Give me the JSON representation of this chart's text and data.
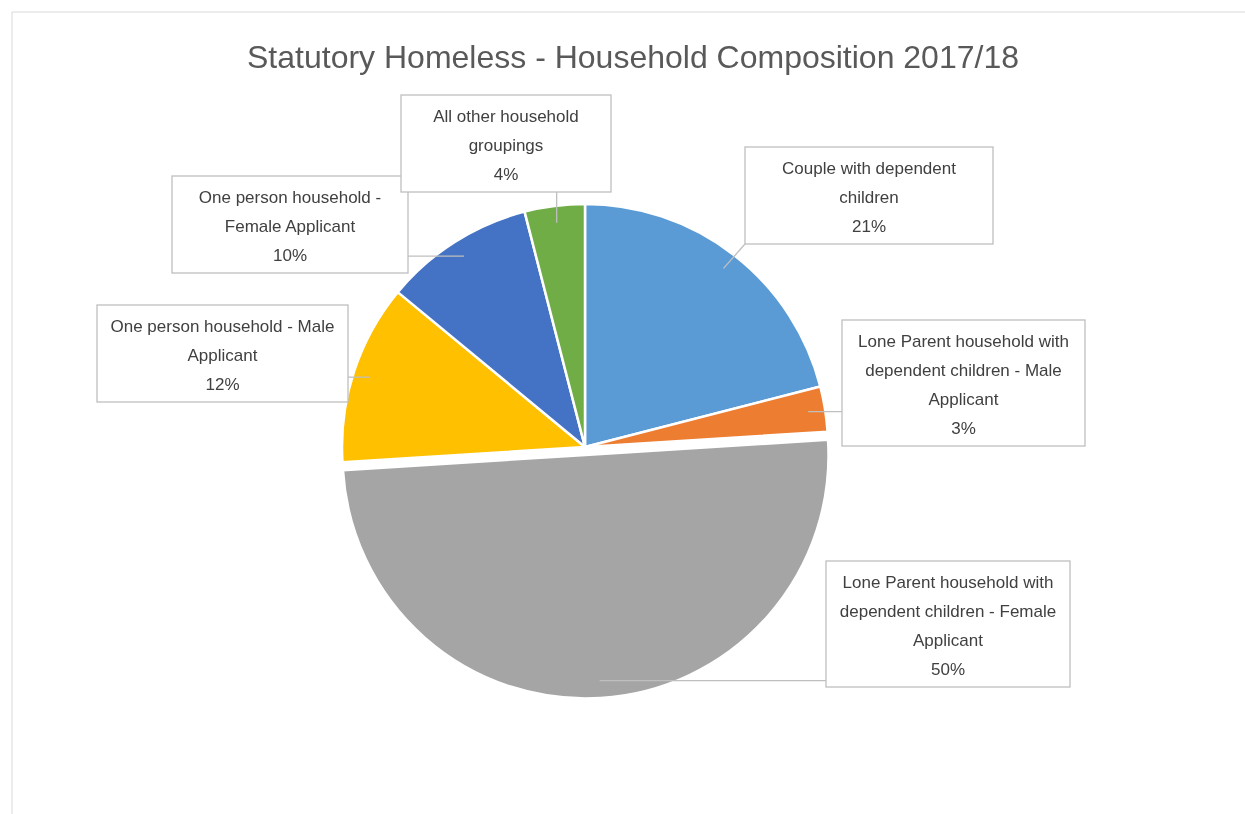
{
  "chart_data": {
    "type": "pie",
    "title": "Statutory Homeless - Household Composition 2017/18",
    "categories": [
      "Couple with dependent children",
      "Lone Parent household with dependent children - Male Applicant",
      "Lone Parent household with dependent children - Female Applicant",
      "One person household - Male Applicant",
      "One person household - Female Applicant",
      "All other household groupings"
    ],
    "values": [
      21,
      3,
      50,
      12,
      10,
      4
    ],
    "value_labels": [
      "21%",
      "3%",
      "50%",
      "12%",
      "10%",
      "4%"
    ],
    "colors": [
      "#5b9bd5",
      "#ed7d31",
      "#a5a5a5",
      "#ffc000",
      "#4472c4",
      "#70ad47"
    ]
  }
}
